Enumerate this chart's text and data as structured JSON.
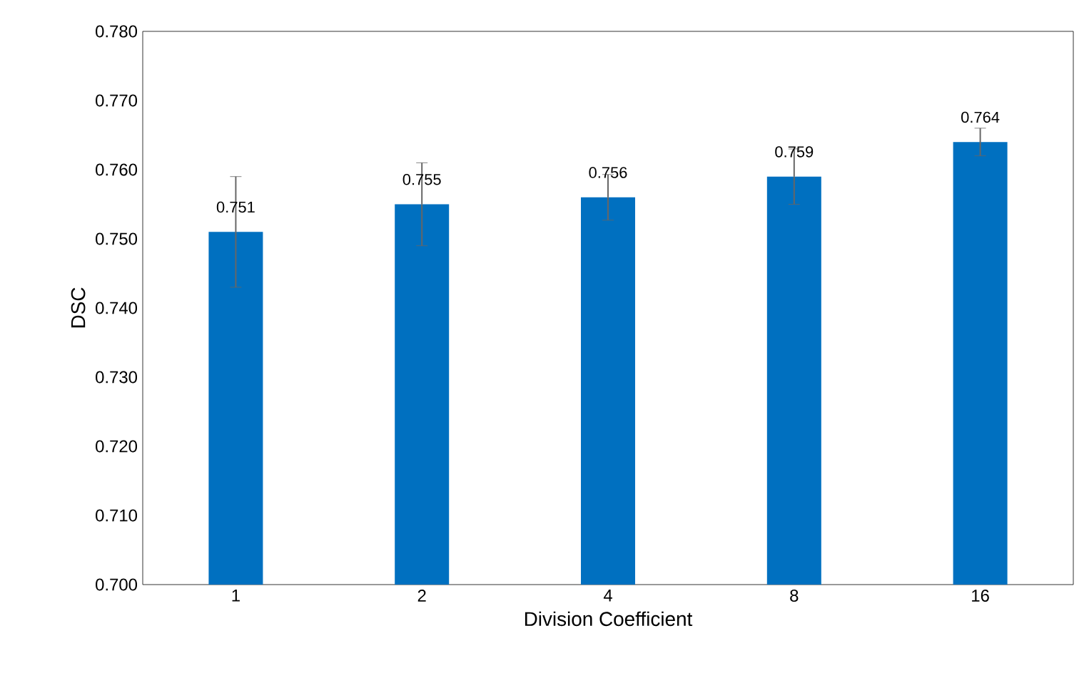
{
  "chart_data": {
    "type": "bar",
    "xlabel": "Division Coefficient",
    "ylabel": "DSC",
    "categories": [
      "1",
      "2",
      "4",
      "8",
      "16"
    ],
    "values": [
      0.751,
      0.755,
      0.756,
      0.759,
      0.764
    ],
    "errors": [
      0.008,
      0.006,
      0.0033,
      0.004,
      0.002
    ],
    "color": "#0070c0",
    "data_labels": true,
    "ylim": [
      0.7,
      0.78
    ],
    "yticks": [
      {
        "value": 0.7,
        "label": "0.700"
      },
      {
        "value": 0.71,
        "label": "0.710"
      },
      {
        "value": 0.72,
        "label": "0.720"
      },
      {
        "value": 0.73,
        "label": "0.730"
      },
      {
        "value": 0.74,
        "label": "0.740"
      },
      {
        "value": 0.75,
        "label": "0.750"
      },
      {
        "value": 0.76,
        "label": "0.760"
      },
      {
        "value": 0.77,
        "label": "0.770"
      },
      {
        "value": 0.78,
        "label": "0.780"
      }
    ]
  }
}
